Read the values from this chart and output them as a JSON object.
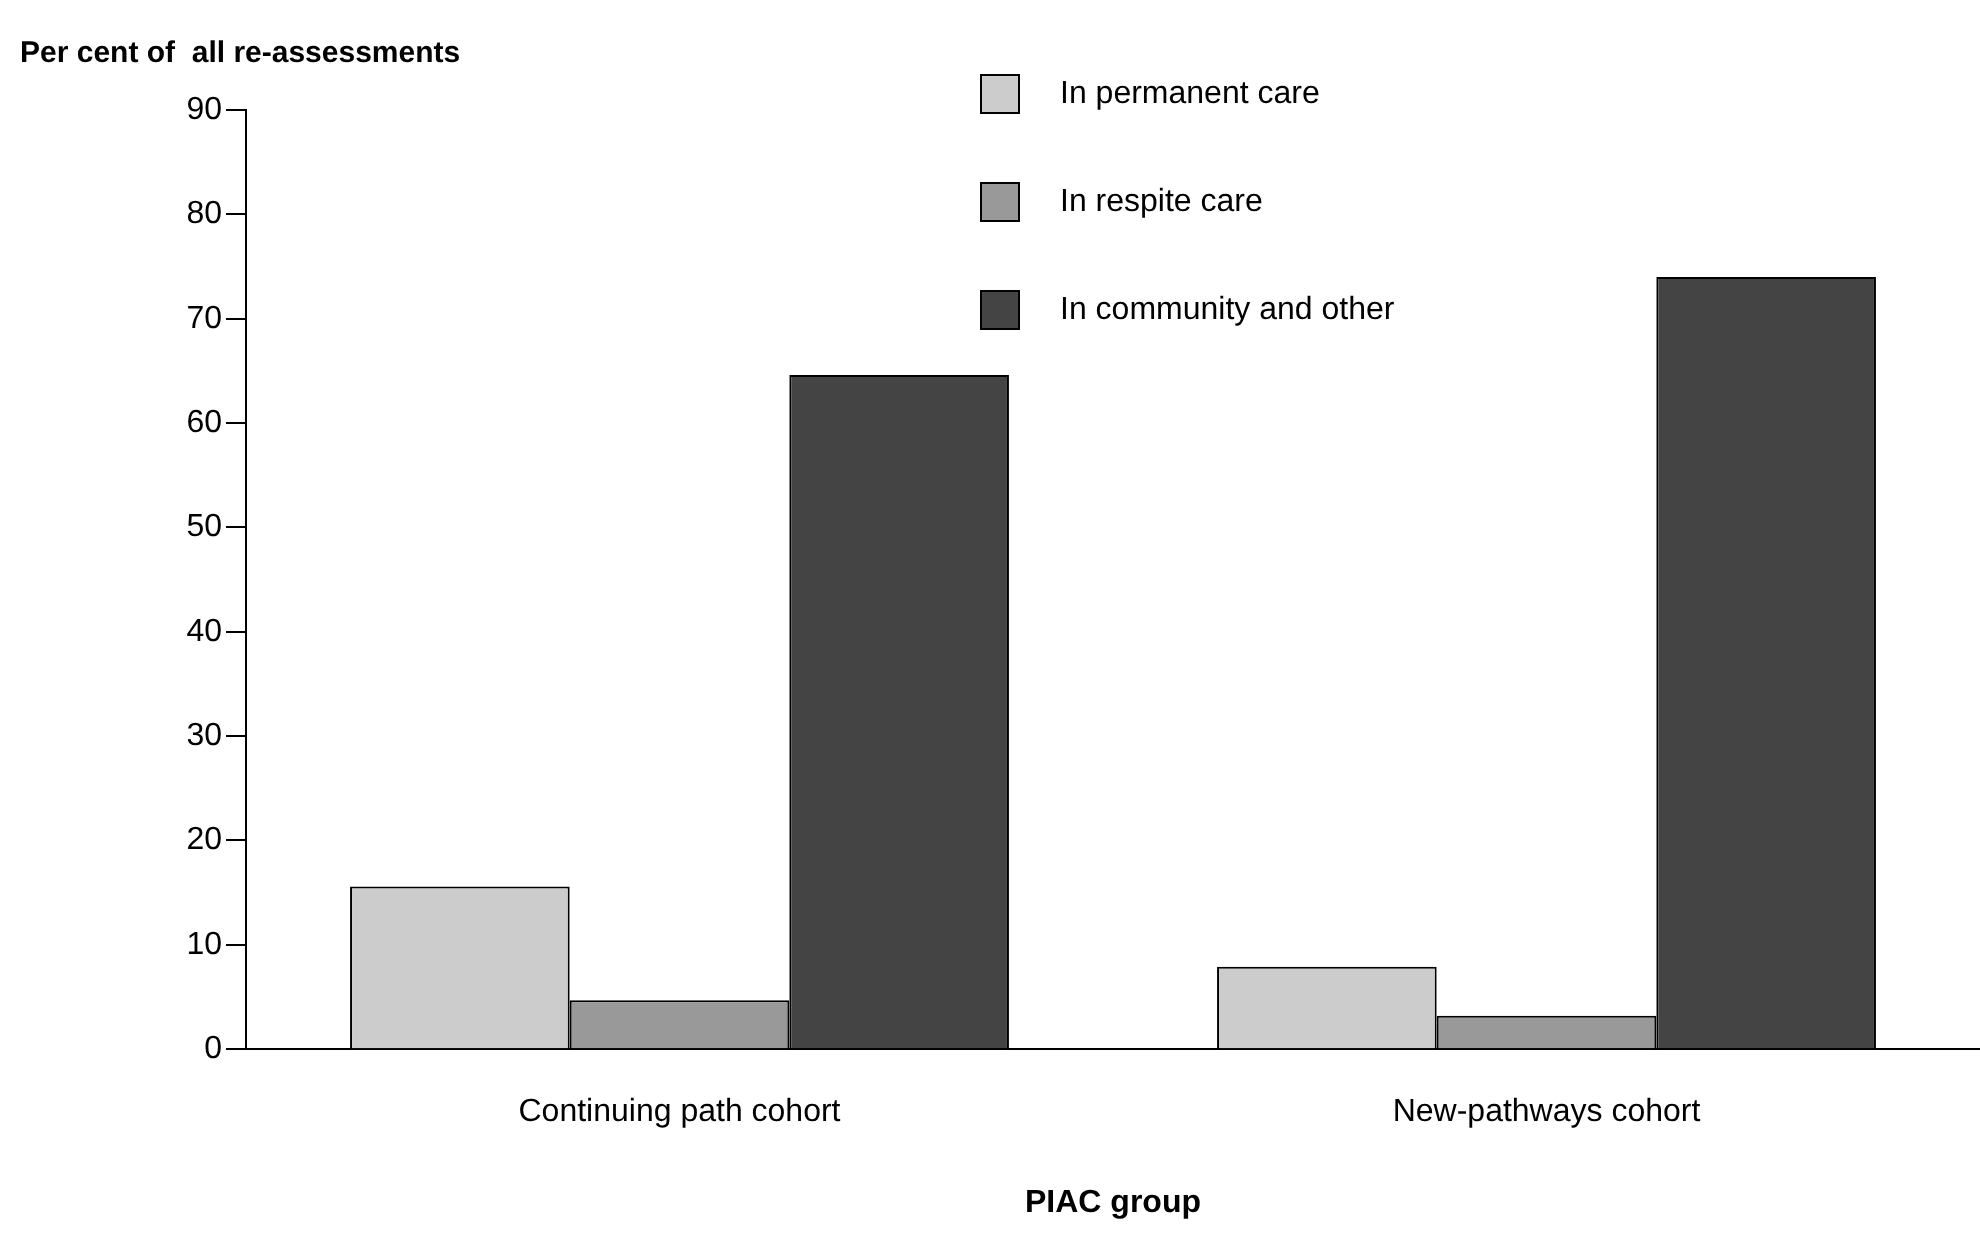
{
  "chart_data": {
    "type": "bar",
    "xlabel": "PIAC group",
    "ylabel": "Per cent of  all re-assessments",
    "categories": [
      "Continuing path cohort",
      "New-pathways cohort"
    ],
    "series": [
      {
        "name": "In permanent care",
        "color": "#cccccc",
        "values": [
          15.6,
          7.9
        ]
      },
      {
        "name": "In respite care",
        "color": "#999999",
        "values": [
          4.7,
          3.2
        ]
      },
      {
        "name": "In community and other",
        "color": "#444444",
        "values": [
          64.6,
          74.0
        ]
      }
    ],
    "ylim": [
      0,
      90
    ],
    "yticks": [
      0,
      10,
      20,
      30,
      40,
      50,
      60,
      70,
      80,
      90
    ],
    "grid": false,
    "legend": "top right"
  }
}
